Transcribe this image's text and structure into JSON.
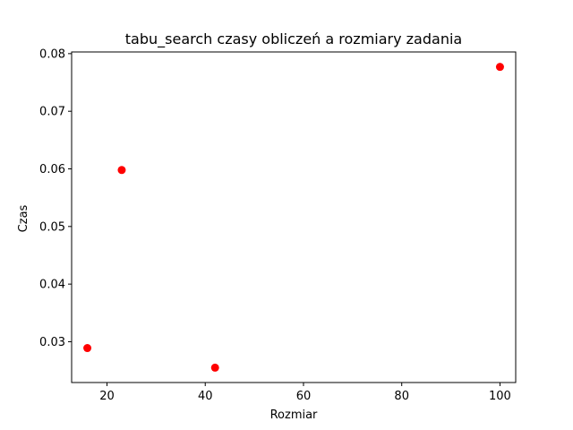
{
  "chart_data": {
    "type": "scatter",
    "title": "tabu_search czasy obliczeń a rozmiary zadania",
    "xlabel": "Rozmiar",
    "ylabel": "Czas",
    "xlim": [
      12.8,
      103.2
    ],
    "ylim": [
      0.02292,
      0.08029
    ],
    "xticks": [
      20,
      40,
      60,
      80,
      100
    ],
    "yticks": [
      0.03,
      0.04,
      0.05,
      0.06,
      0.07,
      0.08
    ],
    "xtick_labels": [
      "20",
      "40",
      "60",
      "80",
      "100"
    ],
    "ytick_labels": [
      "0.03",
      "0.04",
      "0.05",
      "0.06",
      "0.07",
      "0.08"
    ],
    "grid": false,
    "series": [
      {
        "marker_color": "#ff0000",
        "points": [
          {
            "x": 16,
            "y": 0.0289
          },
          {
            "x": 23,
            "y": 0.0598
          },
          {
            "x": 42,
            "y": 0.0255
          },
          {
            "x": 100,
            "y": 0.0777
          }
        ]
      }
    ]
  }
}
